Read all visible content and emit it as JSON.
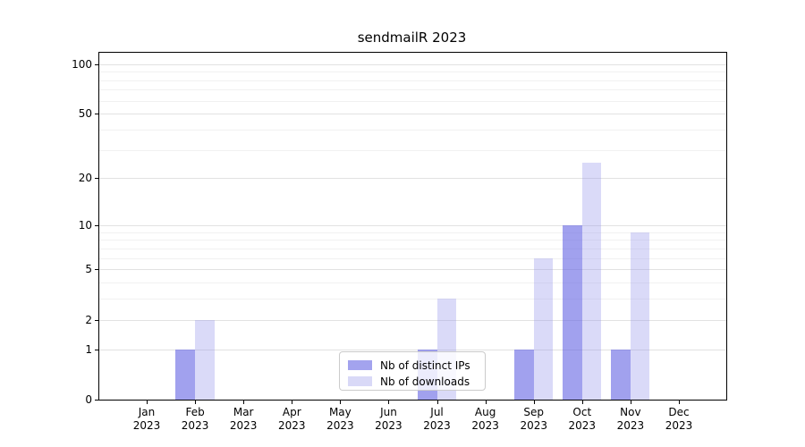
{
  "title": "sendmailR 2023",
  "legend": {
    "items": [
      {
        "label": "Nb of distinct IPs",
        "color": "#a3a3ee"
      },
      {
        "label": "Nb of downloads",
        "color": "#d9d9f7"
      }
    ]
  },
  "colors": {
    "bar_distinct_ips_fill": "rgba(103,103,227,0.62)",
    "bar_downloads_fill": "rgba(148,148,234,0.35)",
    "grid_major": "#e2e2e2",
    "grid_minor": "#f1f1f1",
    "axis": "#000000"
  },
  "chart_data": {
    "type": "bar",
    "title": "sendmailR 2023",
    "categories": [
      "Jan",
      "Feb",
      "Mar",
      "Apr",
      "May",
      "Jun",
      "Jul",
      "Aug",
      "Sep",
      "Oct",
      "Nov",
      "Dec"
    ],
    "category_year": "2023",
    "series": [
      {
        "name": "Nb of distinct IPs",
        "values": [
          0,
          1,
          0,
          0,
          0,
          0,
          1,
          0,
          1,
          10,
          1,
          0
        ]
      },
      {
        "name": "Nb of downloads",
        "values": [
          0,
          2,
          0,
          0,
          0,
          0,
          3,
          0,
          6,
          25,
          9,
          0
        ]
      }
    ],
    "yscale": "log1p",
    "yticks": [
      0,
      1,
      2,
      5,
      10,
      20,
      50,
      100
    ],
    "yticks_minor": [
      3,
      4,
      6,
      7,
      8,
      9,
      30,
      40,
      60,
      70,
      80,
      90
    ],
    "ylim": [
      0,
      118
    ],
    "xlabel": "",
    "ylabel": "",
    "grid": true,
    "legend_position": "lower-center-inside"
  }
}
